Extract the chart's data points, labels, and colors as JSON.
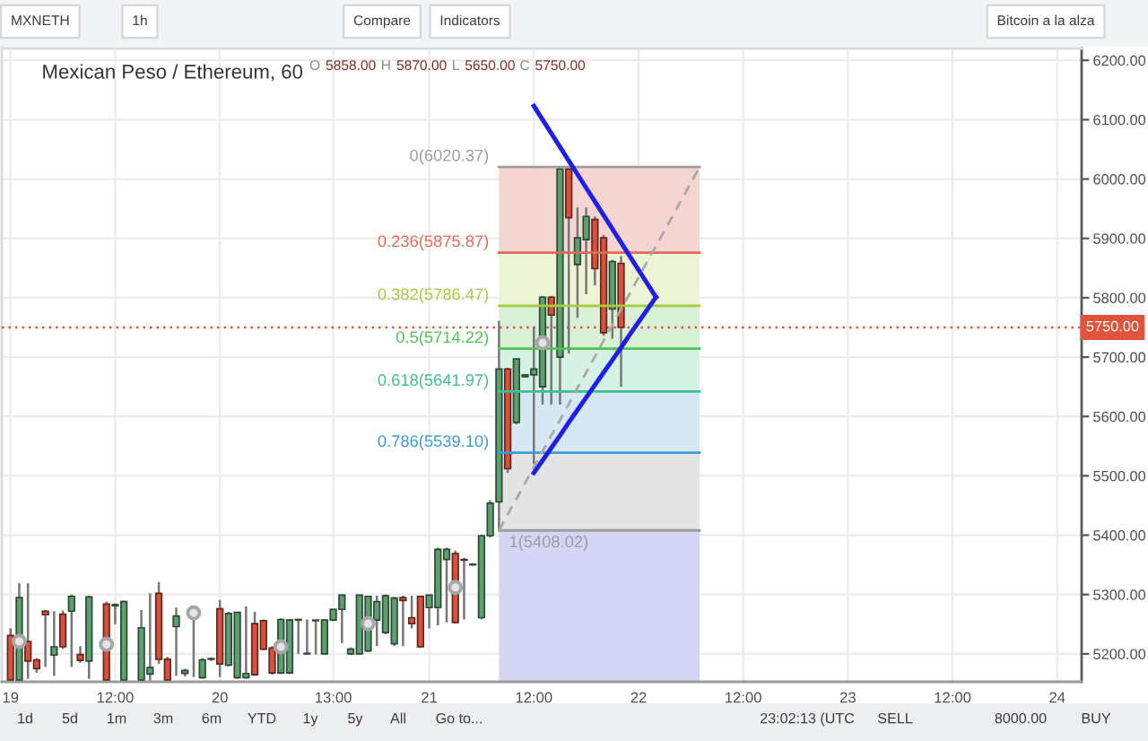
{
  "chart_data": {
    "type": "candlestick",
    "title": "Mexican Peso / Ethereum, 60",
    "subtitle": "O 5858.00 H 5870.00 L 5650.00 C 5750.00",
    "annotations": [
      "MXNETH",
      "1h",
      "Compare",
      "Indicators",
      "Bitcoin a la alza",
      "1d",
      "5d",
      "1m",
      "3m",
      "6m",
      "YTD",
      "1y",
      "5y",
      "All",
      "Go to...",
      "23:02:13 (UTC",
      "SELL",
      "8000.00",
      "BUY"
    ],
    "categories": [
      "19",
      null,
      null,
      null,
      null,
      null,
      null,
      null,
      null,
      null,
      null,
      null,
      "12:00",
      null,
      null,
      null,
      null,
      null,
      null,
      null,
      null,
      null,
      null,
      null,
      "20",
      null,
      null,
      null,
      null,
      null,
      null,
      null,
      null,
      null,
      null,
      null,
      null,
      "13:00",
      null,
      null,
      null,
      null,
      null,
      null,
      null,
      null,
      null,
      null,
      "21",
      null,
      null,
      null,
      null,
      null,
      null,
      null,
      null,
      null,
      null,
      null,
      "12:00",
      null,
      null,
      null,
      null,
      null,
      null,
      null,
      null,
      null,
      null,
      null,
      "22",
      null,
      null,
      null,
      null,
      null,
      null,
      null,
      null,
      null,
      null,
      null,
      "12:00",
      null,
      null,
      null,
      null,
      null,
      null,
      null,
      null,
      null,
      null,
      null,
      "23",
      null,
      null,
      null,
      null,
      null,
      null,
      null,
      null,
      null,
      null,
      null,
      "12:00",
      null,
      null,
      null,
      null,
      null,
      null,
      null,
      null,
      null,
      null,
      null,
      "24",
      null,
      null
    ],
    "ohlc": [
      [
        5231,
        5243,
        5155,
        5156
      ],
      [
        5156,
        5319,
        5155,
        5295
      ],
      [
        5221,
        5319,
        5158,
        5188
      ],
      [
        5190,
        5193,
        5168,
        5175
      ],
      [
        5272,
        5274,
        5178,
        5266
      ],
      [
        5198,
        5272,
        5163,
        5212
      ],
      [
        5267,
        5273,
        5208,
        5212
      ],
      [
        5272,
        5300,
        5178,
        5297
      ],
      [
        5199,
        5213,
        5185,
        5189
      ],
      [
        5188,
        5298,
        5158,
        5296
      ],
      null,
      [
        5284,
        5288,
        5155,
        5156
      ],
      [
        5281,
        5285,
        5250,
        5283
      ],
      [
        5156,
        5290,
        5155,
        5288
      ],
      null,
      [
        5156,
        5274,
        5155,
        5244
      ],
      [
        5166,
        5302,
        5155,
        5177
      ],
      [
        5302,
        5321,
        5183,
        5191
      ],
      [
        5191,
        5195,
        5155,
        5156
      ],
      [
        5246,
        5278,
        5163,
        5264
      ],
      [
        5167,
        5175,
        5162,
        5172
      ],
      [
        5268,
        5278,
        5161,
        5270
      ],
      [
        5160,
        5193,
        5158,
        5190
      ],
      [
        5191,
        5194,
        5188,
        5192
      ],
      [
        5276,
        5291,
        5161,
        5183
      ],
      [
        5181,
        5271,
        5179,
        5268
      ],
      [
        5160,
        5270,
        5158,
        5270
      ],
      [
        5160,
        5280,
        5158,
        5167
      ],
      [
        5251,
        5271,
        5163,
        5165
      ],
      [
        5256,
        5258,
        5206,
        5208
      ],
      [
        5210,
        5213,
        5165,
        5168
      ],
      [
        5168,
        5260,
        5166,
        5258
      ],
      [
        5168,
        5259,
        5166,
        5257
      ],
      [
        5257,
        5258,
        5200,
        5258
      ],
      [
        5200,
        5258,
        5199,
        5201
      ],
      [
        5256,
        5257,
        5199,
        5257
      ],
      [
        5200,
        5258,
        5199,
        5257
      ],
      [
        5257,
        5276,
        5255,
        5275
      ],
      [
        5275,
        5300,
        5218,
        5299
      ],
      [
        5200,
        5211,
        5198,
        5208
      ],
      [
        5200,
        5300,
        5199,
        5299
      ],
      [
        5205,
        5298,
        5203,
        5297
      ],
      [
        5257,
        5298,
        5213,
        5288
      ],
      [
        5236,
        5300,
        5233,
        5298
      ],
      [
        5217,
        5296,
        5213,
        5294
      ],
      [
        5295,
        5298,
        5213,
        5290
      ],
      [
        5261,
        5298,
        5243,
        5251
      ],
      [
        5297,
        5298,
        5210,
        5212
      ],
      [
        5278,
        5300,
        5243,
        5299
      ],
      [
        5278,
        5379,
        5248,
        5376
      ],
      [
        5359,
        5379,
        5253,
        5376
      ],
      [
        5369,
        5374,
        5251,
        5253
      ],
      [
        5359,
        5362,
        5258,
        5358
      ],
      [
        5350,
        5353,
        5349,
        5351
      ],
      [
        5261,
        5401,
        5258,
        5399
      ],
      [
        5399,
        5459,
        5396,
        5454
      ],
      [
        5456,
        5761,
        5408,
        5680
      ],
      [
        5680,
        5682,
        5505,
        5512
      ],
      [
        5590,
        5697,
        5587,
        5697
      ],
      [
        5667,
        5671,
        5666,
        5670
      ],
      [
        5670,
        5751,
        5520,
        5680
      ],
      [
        5650,
        5803,
        5620,
        5801
      ],
      [
        5801,
        5803,
        5620,
        5771
      ],
      [
        5700,
        6019,
        5620,
        6017
      ],
      [
        6017,
        6020,
        5706,
        5935
      ],
      [
        5856,
        5952,
        5766,
        5901
      ],
      [
        5898,
        5952,
        5806,
        5937
      ],
      [
        5932,
        5937,
        5821,
        5849
      ],
      [
        5901,
        5906,
        5736,
        5741
      ],
      [
        5781,
        5864,
        5731,
        5861
      ],
      [
        5858,
        5870,
        5650,
        5750
      ],
      null,
      null,
      null,
      null,
      null,
      null,
      null,
      null,
      null,
      null,
      null,
      null,
      null,
      null,
      null,
      null,
      null,
      null,
      null,
      null,
      null,
      null,
      null,
      null,
      null,
      null,
      null,
      null,
      null,
      null,
      null,
      null,
      null,
      null,
      null,
      null,
      null,
      null,
      null,
      null,
      null,
      null,
      null,
      null,
      null,
      null,
      null,
      null,
      null,
      null,
      null,
      null
    ],
    "colors": [
      "#d6523e",
      "#5d9f6f",
      "#d6523e",
      "#d6523e",
      "#d6523e",
      "#5d9f6f",
      "#d6523e",
      "#5d9f6f",
      "#d6523e",
      "#5d9f6f",
      null,
      "#d6523e",
      "#5d9f6f",
      "#5d9f6f",
      null,
      "#5d9f6f",
      "#5d9f6f",
      "#d6523e",
      "#d6523e",
      "#5d9f6f",
      "#5d9f6f",
      "#5d9f6f",
      "#5d9f6f",
      "#5d9f6f",
      "#d6523e",
      "#5d9f6f",
      "#5d9f6f",
      "#5d9f6f",
      "#d6523e",
      "#d6523e",
      "#d6523e",
      "#5d9f6f",
      "#5d9f6f",
      "#5d9f6f",
      "#5d9f6f",
      "#5d9f6f",
      "#5d9f6f",
      "#5d9f6f",
      "#5d9f6f",
      "#5d9f6f",
      "#5d9f6f",
      "#5d9f6f",
      "#5d9f6f",
      "#5d9f6f",
      "#5d9f6f",
      "#d6523e",
      "#d6523e",
      "#d6523e",
      "#5d9f6f",
      "#5d9f6f",
      "#5d9f6f",
      "#d6523e",
      "#d6523e",
      "#5d9f6f",
      "#5d9f6f",
      "#5d9f6f",
      "#5d9f6f",
      "#d6523e",
      "#5d9f6f",
      "#5d9f6f",
      "#5d9f6f",
      "#5d9f6f",
      "#d6523e",
      "#5d9f6f",
      "#d6523e",
      "#5d9f6f",
      "#5d9f6f",
      "#d6523e",
      "#d6523e",
      "#5d9f6f",
      "#d6523e",
      null,
      null,
      null,
      null,
      null,
      null,
      null,
      null,
      null,
      null,
      null,
      null,
      null,
      null,
      null,
      null,
      null,
      null,
      null,
      null,
      null,
      null,
      null,
      null,
      null,
      null,
      null,
      null,
      null,
      null,
      null,
      null,
      null,
      null,
      null,
      null,
      null,
      null,
      null,
      null,
      null,
      null,
      null,
      null,
      null,
      null,
      null,
      null,
      null,
      null,
      null,
      null
    ],
    "series": [
      {
        "type": "line",
        "name": "0(6020.37)",
        "color": "#9c9c9c",
        "values": [
          null,
          null,
          null,
          null,
          null,
          null,
          null,
          null,
          null,
          null,
          null,
          null,
          null,
          null,
          null,
          null,
          null,
          null,
          null,
          null,
          null,
          null,
          null,
          null,
          null,
          null,
          null,
          null,
          null,
          null,
          null,
          null,
          null,
          null,
          null,
          null,
          null,
          null,
          null,
          null,
          null,
          null,
          null,
          null,
          null,
          null,
          null,
          null,
          null,
          null,
          null,
          null,
          null,
          null,
          null,
          null,
          6020.37,
          6020.37,
          6020.37,
          6020.37,
          6020.37,
          6020.37,
          6020.37,
          6020.37,
          6020.37,
          6020.37,
          6020.37,
          6020.37,
          6020.37,
          6020.37,
          6020.37,
          6020.37,
          6020.37,
          6020.37,
          6020.37,
          6020.37,
          6020.37,
          6020.37,
          6020.37,
          6020.37,
          null,
          null,
          null,
          null,
          null,
          null,
          null,
          null,
          null,
          null,
          null,
          null,
          null,
          null,
          null,
          null,
          null,
          null,
          null,
          null,
          null,
          null,
          null,
          null,
          null,
          null,
          null,
          null,
          null,
          null,
          null,
          null,
          null,
          null,
          null,
          null,
          null,
          null,
          null,
          null,
          null,
          null,
          null
        ]
      },
      {
        "type": "line",
        "name": "0.236(5875.87)",
        "color": "#e06a58",
        "values": [
          null,
          null,
          null,
          null,
          null,
          null,
          null,
          null,
          null,
          null,
          null,
          null,
          null,
          null,
          null,
          null,
          null,
          null,
          null,
          null,
          null,
          null,
          null,
          null,
          null,
          null,
          null,
          null,
          null,
          null,
          null,
          null,
          null,
          null,
          null,
          null,
          null,
          null,
          null,
          null,
          null,
          null,
          null,
          null,
          null,
          null,
          null,
          null,
          null,
          null,
          null,
          null,
          null,
          null,
          null,
          null,
          5875.87,
          5875.87,
          5875.87,
          5875.87,
          5875.87,
          5875.87,
          5875.87,
          5875.87,
          5875.87,
          5875.87,
          5875.87,
          5875.87,
          5875.87,
          5875.87,
          5875.87,
          5875.87,
          5875.87,
          5875.87,
          5875.87,
          5875.87,
          5875.87,
          5875.87,
          5875.87,
          5875.87,
          null,
          null,
          null,
          null,
          null,
          null,
          null,
          null,
          null,
          null,
          null,
          null,
          null,
          null,
          null,
          null,
          null,
          null,
          null,
          null,
          null,
          null,
          null,
          null,
          null,
          null,
          null,
          null,
          null,
          null,
          null,
          null,
          null,
          null,
          null,
          null,
          null,
          null,
          null,
          null,
          null,
          null,
          null
        ]
      },
      {
        "type": "line",
        "name": "0.382(5786.47)",
        "color": "#a4cc3c",
        "values": [
          null,
          null,
          null,
          null,
          null,
          null,
          null,
          null,
          null,
          null,
          null,
          null,
          null,
          null,
          null,
          null,
          null,
          null,
          null,
          null,
          null,
          null,
          null,
          null,
          null,
          null,
          null,
          null,
          null,
          null,
          null,
          null,
          null,
          null,
          null,
          null,
          null,
          null,
          null,
          null,
          null,
          null,
          null,
          null,
          null,
          null,
          null,
          null,
          null,
          null,
          null,
          null,
          null,
          null,
          null,
          null,
          5786.47,
          5786.47,
          5786.47,
          5786.47,
          5786.47,
          5786.47,
          5786.47,
          5786.47,
          5786.47,
          5786.47,
          5786.47,
          5786.47,
          5786.47,
          5786.47,
          5786.47,
          5786.47,
          5786.47,
          5786.47,
          5786.47,
          5786.47,
          5786.47,
          5786.47,
          5786.47,
          5786.47,
          null,
          null,
          null,
          null,
          null,
          null,
          null,
          null,
          null,
          null,
          null,
          null,
          null,
          null,
          null,
          null,
          null,
          null,
          null,
          null,
          null,
          null,
          null,
          null,
          null,
          null,
          null,
          null,
          null,
          null,
          null,
          null,
          null,
          null,
          null,
          null,
          null,
          null,
          null,
          null,
          null,
          null,
          null
        ]
      },
      {
        "type": "line",
        "name": "0.5(5714.22)",
        "color": "#4fc44f",
        "values": [
          null,
          null,
          null,
          null,
          null,
          null,
          null,
          null,
          null,
          null,
          null,
          null,
          null,
          null,
          null,
          null,
          null,
          null,
          null,
          null,
          null,
          null,
          null,
          null,
          null,
          null,
          null,
          null,
          null,
          null,
          null,
          null,
          null,
          null,
          null,
          null,
          null,
          null,
          null,
          null,
          null,
          null,
          null,
          null,
          null,
          null,
          null,
          null,
          null,
          null,
          null,
          null,
          null,
          null,
          null,
          null,
          5714.22,
          5714.22,
          5714.22,
          5714.22,
          5714.22,
          5714.22,
          5714.22,
          5714.22,
          5714.22,
          5714.22,
          5714.22,
          5714.22,
          5714.22,
          5714.22,
          5714.22,
          5714.22,
          5714.22,
          5714.22,
          5714.22,
          5714.22,
          5714.22,
          5714.22,
          5714.22,
          5714.22,
          null,
          null,
          null,
          null,
          null,
          null,
          null,
          null,
          null,
          null,
          null,
          null,
          null,
          null,
          null,
          null,
          null,
          null,
          null,
          null,
          null,
          null,
          null,
          null,
          null,
          null,
          null,
          null,
          null,
          null,
          null,
          null,
          null,
          null,
          null,
          null,
          null,
          null,
          null,
          null,
          null,
          null,
          null
        ]
      },
      {
        "type": "line",
        "name": "0.618(5641.97)",
        "color": "#3fbf95",
        "values": [
          null,
          null,
          null,
          null,
          null,
          null,
          null,
          null,
          null,
          null,
          null,
          null,
          null,
          null,
          null,
          null,
          null,
          null,
          null,
          null,
          null,
          null,
          null,
          null,
          null,
          null,
          null,
          null,
          null,
          null,
          null,
          null,
          null,
          null,
          null,
          null,
          null,
          null,
          null,
          null,
          null,
          null,
          null,
          null,
          null,
          null,
          null,
          null,
          null,
          null,
          null,
          null,
          null,
          null,
          null,
          null,
          5641.97,
          5641.97,
          5641.97,
          5641.97,
          5641.97,
          5641.97,
          5641.97,
          5641.97,
          5641.97,
          5641.97,
          5641.97,
          5641.97,
          5641.97,
          5641.97,
          5641.97,
          5641.97,
          5641.97,
          5641.97,
          5641.97,
          5641.97,
          5641.97,
          5641.97,
          5641.97,
          5641.97,
          null,
          null,
          null,
          null,
          null,
          null,
          null,
          null,
          null,
          null,
          null,
          null,
          null,
          null,
          null,
          null,
          null,
          null,
          null,
          null,
          null,
          null,
          null,
          null,
          null,
          null,
          null,
          null,
          null,
          null,
          null,
          null,
          null,
          null,
          null,
          null,
          null,
          null,
          null,
          null,
          null,
          null,
          null
        ]
      },
      {
        "type": "line",
        "name": "0.786(5539.10)",
        "color": "#3d9bd9",
        "values": [
          null,
          null,
          null,
          null,
          null,
          null,
          null,
          null,
          null,
          null,
          null,
          null,
          null,
          null,
          null,
          null,
          null,
          null,
          null,
          null,
          null,
          null,
          null,
          null,
          null,
          null,
          null,
          null,
          null,
          null,
          null,
          null,
          null,
          null,
          null,
          null,
          null,
          null,
          null,
          null,
          null,
          null,
          null,
          null,
          null,
          null,
          null,
          null,
          null,
          null,
          null,
          null,
          null,
          null,
          null,
          null,
          5539.1,
          5539.1,
          5539.1,
          5539.1,
          5539.1,
          5539.1,
          5539.1,
          5539.1,
          5539.1,
          5539.1,
          5539.1,
          5539.1,
          5539.1,
          5539.1,
          5539.1,
          5539.1,
          5539.1,
          5539.1,
          5539.1,
          5539.1,
          5539.1,
          5539.1,
          5539.1,
          5539.1,
          null,
          null,
          null,
          null,
          null,
          null,
          null,
          null,
          null,
          null,
          null,
          null,
          null,
          null,
          null,
          null,
          null,
          null,
          null,
          null,
          null,
          null,
          null,
          null,
          null,
          null,
          null,
          null,
          null,
          null,
          null,
          null,
          null,
          null,
          null,
          null,
          null,
          null,
          null,
          null,
          null,
          null,
          null
        ]
      },
      {
        "type": "line",
        "name": "1(5408.02)",
        "color": "#9c9c9c",
        "values": [
          null,
          null,
          null,
          null,
          null,
          null,
          null,
          null,
          null,
          null,
          null,
          null,
          null,
          null,
          null,
          null,
          null,
          null,
          null,
          null,
          null,
          null,
          null,
          null,
          null,
          null,
          null,
          null,
          null,
          null,
          null,
          null,
          null,
          null,
          null,
          null,
          null,
          null,
          null,
          null,
          null,
          null,
          null,
          null,
          null,
          null,
          null,
          null,
          null,
          null,
          null,
          null,
          null,
          null,
          null,
          null,
          5408.02,
          5408.02,
          5408.02,
          5408.02,
          5408.02,
          5408.02,
          5408.02,
          5408.02,
          5408.02,
          5408.02,
          5408.02,
          5408.02,
          5408.02,
          5408.02,
          5408.02,
          5408.02,
          5408.02,
          5408.02,
          5408.02,
          5408.02,
          5408.02,
          5408.02,
          5408.02,
          5408.02,
          null,
          null,
          null,
          null,
          null,
          null,
          null,
          null,
          null,
          null,
          null,
          null,
          null,
          null,
          null,
          null,
          null,
          null,
          null,
          null,
          null,
          null,
          null,
          null,
          null,
          null,
          null,
          null,
          null,
          null,
          null,
          null,
          null,
          null,
          null,
          null,
          null,
          null,
          null,
          null,
          null,
          null,
          null
        ]
      },
      {
        "type": "line",
        "color": "#a8a8a8",
        "line_style": "dashed",
        "values": [
          null,
          null,
          null,
          null,
          null,
          null,
          null,
          null,
          null,
          null,
          null,
          null,
          null,
          null,
          null,
          null,
          null,
          null,
          null,
          null,
          null,
          null,
          null,
          null,
          null,
          null,
          null,
          null,
          null,
          null,
          null,
          null,
          null,
          null,
          null,
          null,
          null,
          null,
          null,
          null,
          null,
          null,
          null,
          null,
          null,
          null,
          null,
          null,
          null,
          null,
          null,
          null,
          null,
          null,
          null,
          null,
          5408,
          5435,
          5461,
          5488,
          5515,
          5541,
          5568,
          5594,
          5621,
          5648,
          5674,
          5701,
          5728,
          5754,
          5781,
          5807,
          5834,
          5861,
          5887,
          5914,
          5940,
          5967,
          5994,
          6020,
          null,
          null,
          null,
          null,
          null,
          null,
          null,
          null,
          null,
          null,
          null,
          null,
          null,
          null,
          null,
          null,
          null,
          null,
          null,
          null,
          null,
          null,
          null,
          null,
          null,
          null,
          null,
          null,
          null,
          null,
          null,
          null,
          null,
          null,
          null,
          null,
          null,
          null,
          null,
          null,
          null,
          null,
          null
        ]
      },
      {
        "type": "line",
        "color": "#1f1fe8",
        "values": [
          null,
          null,
          null,
          null,
          null,
          null,
          null,
          null,
          null,
          null,
          null,
          null,
          null,
          null,
          null,
          null,
          null,
          null,
          null,
          null,
          null,
          null,
          null,
          null,
          null,
          null,
          null,
          null,
          null,
          null,
          null,
          null,
          null,
          null,
          null,
          null,
          null,
          null,
          null,
          null,
          null,
          null,
          null,
          null,
          null,
          null,
          null,
          null,
          null,
          null,
          null,
          null,
          null,
          null,
          null,
          null,
          null,
          null,
          null,
          null,
          6123,
          6100,
          6077,
          6054,
          6031,
          6008,
          5985,
          5962,
          5939,
          5916,
          5893,
          5870,
          5847,
          5824,
          5801,
          null,
          null,
          null,
          null,
          null,
          null,
          null,
          null,
          null,
          null,
          null,
          null,
          null,
          null,
          null,
          null,
          null,
          null,
          null,
          null,
          null,
          null,
          null,
          null,
          null,
          null,
          null,
          null,
          null,
          null,
          null,
          null,
          null,
          null,
          null,
          null,
          null,
          null,
          null,
          null,
          null,
          null,
          null,
          null,
          null,
          null,
          null,
          null
        ]
      },
      {
        "type": "line",
        "color": "#1f1fe8",
        "values": [
          null,
          null,
          null,
          null,
          null,
          null,
          null,
          null,
          null,
          null,
          null,
          null,
          null,
          null,
          null,
          null,
          null,
          null,
          null,
          null,
          null,
          null,
          null,
          null,
          null,
          null,
          null,
          null,
          null,
          null,
          null,
          null,
          null,
          null,
          null,
          null,
          null,
          null,
          null,
          null,
          null,
          null,
          null,
          null,
          null,
          null,
          null,
          null,
          null,
          null,
          null,
          null,
          null,
          null,
          null,
          null,
          null,
          null,
          null,
          null,
          5505,
          5526,
          5547,
          5568,
          5590,
          5611,
          5632,
          5653,
          5674,
          5695,
          5716,
          5738,
          5759,
          5780,
          5801,
          null,
          null,
          null,
          null,
          null,
          null,
          null,
          null,
          null,
          null,
          null,
          null,
          null,
          null,
          null,
          null,
          null,
          null,
          null,
          null,
          null,
          null,
          null,
          null,
          null,
          null,
          null,
          null,
          null,
          null,
          null,
          null,
          null,
          null,
          null,
          null,
          null,
          null,
          null,
          null,
          null,
          null,
          null,
          null,
          null,
          null,
          null,
          null
        ]
      },
      {
        "type": "scatter",
        "marker": "circle",
        "color": "#a6a6a6",
        "values": [
          null,
          5221,
          null,
          null,
          null,
          null,
          null,
          null,
          null,
          null,
          null,
          5216,
          null,
          null,
          null,
          null,
          null,
          null,
          null,
          null,
          null,
          5269,
          null,
          null,
          null,
          null,
          null,
          null,
          null,
          null,
          null,
          5212,
          null,
          null,
          null,
          null,
          null,
          null,
          null,
          null,
          null,
          5251,
          null,
          null,
          null,
          null,
          null,
          null,
          null,
          null,
          null,
          5312,
          null,
          null,
          null,
          null,
          null,
          null,
          null,
          null,
          null,
          5724,
          null,
          null,
          null,
          null,
          null,
          null,
          null,
          null,
          null,
          null,
          null,
          null,
          null,
          null,
          null,
          null,
          null,
          null,
          null,
          null,
          null,
          null,
          null,
          null,
          null,
          null,
          null,
          null,
          null,
          null,
          null,
          null,
          null,
          null,
          null,
          null,
          null,
          null,
          null,
          null,
          null,
          null,
          null,
          null,
          null,
          null,
          null,
          null,
          null,
          null,
          null,
          null,
          null,
          null,
          null,
          null,
          null,
          null,
          null,
          null,
          null
        ]
      }
    ],
    "bands": [
      {
        "axis": "y",
        "from": 5875.87,
        "to": 6020.37,
        "color": "#f5d5d2"
      },
      {
        "axis": "y",
        "from": 5786.47,
        "to": 5875.87,
        "color": "#edf4d6"
      },
      {
        "axis": "y",
        "from": 5714.22,
        "to": 5786.47,
        "color": "#d9f2d7"
      },
      {
        "axis": "y",
        "from": 5641.97,
        "to": 5714.22,
        "color": "#d6f2e4"
      },
      {
        "axis": "y",
        "from": 5539.1,
        "to": 5641.97,
        "color": "#d5e8f4"
      },
      {
        "axis": "y",
        "from": 5408.02,
        "to": 5539.1,
        "color": "#e4e4e4"
      },
      {
        "axis": "y",
        "from": 5153,
        "to": 5408.02,
        "color": "#d4d4f4"
      }
    ],
    "ref_lines": [
      {
        "axis": "y",
        "value": 5750,
        "label": "5750.00",
        "color": "#e0533c",
        "line_style": "dotted"
      }
    ],
    "ylim": [
      5153,
      6220
    ],
    "yticks": [
      {
        "value": 5200,
        "label": "5200.00"
      },
      {
        "value": 5300,
        "label": "5300.00"
      },
      {
        "value": 5400,
        "label": "5400.00"
      },
      {
        "value": 5500,
        "label": "5500.00"
      },
      {
        "value": 5600,
        "label": "5600.00"
      },
      {
        "value": 5700,
        "label": "5700.00"
      },
      {
        "value": 5800,
        "label": "5800.00"
      },
      {
        "value": 5900,
        "label": "5900.00"
      },
      {
        "value": 6000,
        "label": "6000.00"
      },
      {
        "value": 6100,
        "label": "6100.00"
      },
      {
        "value": 6200,
        "label": "6200.00"
      }
    ],
    "grid": true
  }
}
